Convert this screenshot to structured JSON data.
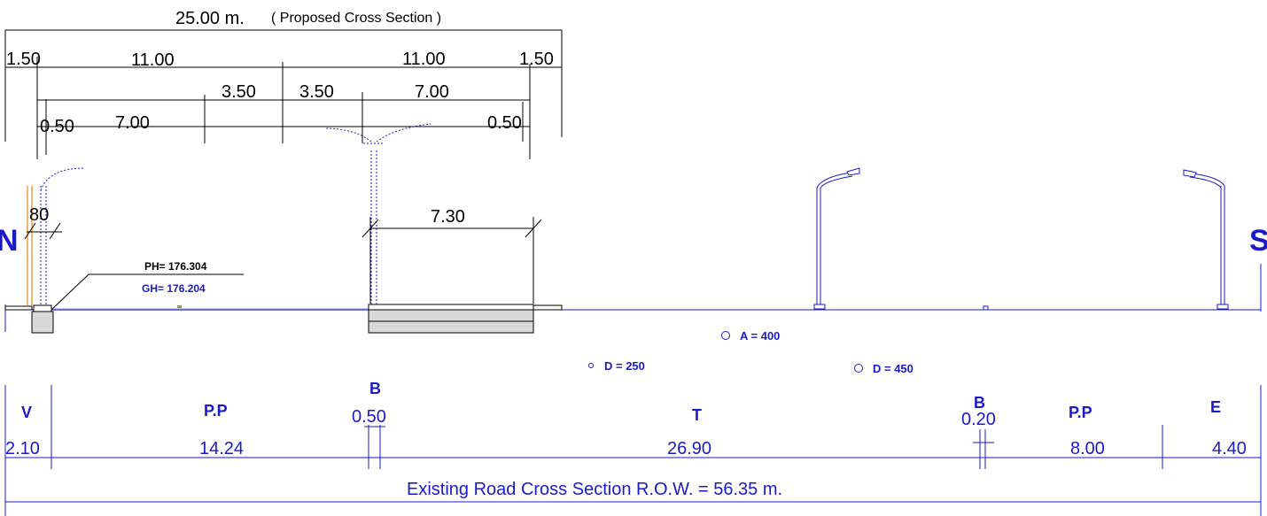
{
  "proposed": {
    "title_width": "25.00 m.",
    "title_name": "( Proposed Cross Section )",
    "row1": [
      "1.50",
      "11.00",
      "11.00",
      "1.50"
    ],
    "row2": [
      "3.50",
      "3.50",
      "7.00"
    ],
    "row3": [
      "0.50",
      "7.00",
      "0.50"
    ]
  },
  "site": {
    "north": "N",
    "south": "S",
    "dim_80": "80",
    "dim_730": "7.30",
    "ph": "PH= 176.304",
    "gh": "GH= 176.204"
  },
  "utilities": {
    "a400": "A  = 400",
    "d250": "D  = 250",
    "d450": "D  = 450"
  },
  "existing": {
    "labels": {
      "v": "V",
      "pp1": "P.P",
      "b1": "B",
      "t": "T",
      "b2": "B",
      "pp2": "P.P",
      "e": "E"
    },
    "values": {
      "v": "2.10",
      "pp1": "14.24",
      "b1": "0.50",
      "t": "26.90",
      "b2": "0.20",
      "pp2": "8.00",
      "e": "4.40"
    },
    "row_title": "Existing Road Cross Section R.O.W. = 56.35 m."
  },
  "colors": {
    "blue": "#1a1ac8",
    "black": "#000000",
    "orange": "#e8a040"
  }
}
